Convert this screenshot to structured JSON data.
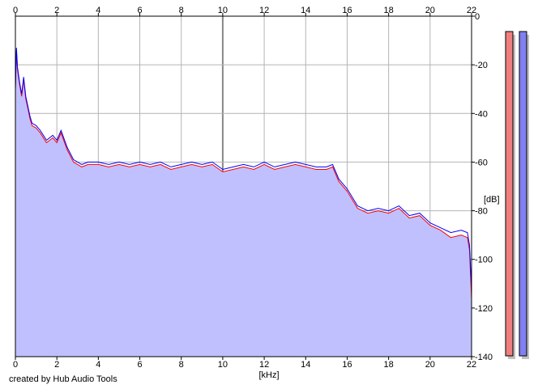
{
  "app": {
    "credit": "created by Hub Audio Tools"
  },
  "colors": {
    "plot_bg": "#ffffff",
    "fill": "#c0c0ff",
    "grid": "#b4b4b4",
    "grid_major": "#888888",
    "axis": "#000000",
    "left_channel": "#ff0000",
    "right_channel": "#0000ff",
    "meter_left": "#f08080",
    "meter_right": "#8080f0",
    "meter_shadow": "#c0c0c0"
  },
  "chart_data": {
    "type": "area",
    "xlabel": "[kHz]",
    "ylabel": "[dB]",
    "xlim": [
      0,
      22
    ],
    "ylim": [
      -140,
      0
    ],
    "x_ticks": [
      "0",
      "2",
      "4",
      "6",
      "8",
      "10",
      "12",
      "14",
      "16",
      "18",
      "20",
      "22"
    ],
    "y_ticks": [
      "0",
      "-20",
      "-40",
      "-60",
      "-80",
      "-100",
      "-120",
      "-140"
    ],
    "grid": true,
    "series": [
      {
        "channel": "left",
        "color": "#ff0000",
        "x": [
          0,
          0.05,
          0.1,
          0.2,
          0.3,
          0.4,
          0.5,
          0.6,
          0.7,
          0.8,
          1.0,
          1.2,
          1.5,
          1.8,
          2.0,
          2.2,
          2.5,
          2.8,
          3.0,
          3.2,
          3.5,
          4.0,
          4.5,
          5.0,
          5.5,
          6.0,
          6.5,
          7.0,
          7.5,
          8.0,
          8.5,
          9.0,
          9.5,
          10.0,
          10.5,
          11.0,
          11.5,
          12.0,
          12.5,
          13.0,
          13.5,
          14.0,
          14.5,
          15.0,
          15.3,
          15.6,
          16.0,
          16.5,
          17.0,
          17.5,
          18.0,
          18.5,
          19.0,
          19.5,
          20.0,
          20.5,
          21.0,
          21.5,
          21.8,
          21.9,
          22.0
        ],
        "y": [
          -30,
          -14,
          -22,
          -28,
          -33,
          -26,
          -34,
          -38,
          -42,
          -45,
          -46,
          -48,
          -52,
          -50,
          -52,
          -48,
          -55,
          -60,
          -61,
          -62,
          -61,
          -61,
          -62,
          -61,
          -62,
          -61,
          -62,
          -61,
          -63,
          -62,
          -61,
          -62,
          -61,
          -64,
          -63,
          -62,
          -63,
          -61,
          -63,
          -62,
          -61,
          -62,
          -63,
          -63,
          -62,
          -68,
          -72,
          -79,
          -81,
          -80,
          -81,
          -79,
          -83,
          -82,
          -86,
          -88,
          -91,
          -90,
          -91,
          -96,
          -116
        ]
      },
      {
        "channel": "right",
        "color": "#0000ff",
        "x": [
          0,
          0.05,
          0.1,
          0.2,
          0.3,
          0.4,
          0.5,
          0.6,
          0.7,
          0.8,
          1.0,
          1.2,
          1.5,
          1.8,
          2.0,
          2.2,
          2.5,
          2.8,
          3.0,
          3.2,
          3.5,
          4.0,
          4.5,
          5.0,
          5.5,
          6.0,
          6.5,
          7.0,
          7.5,
          8.0,
          8.5,
          9.0,
          9.5,
          10.0,
          10.5,
          11.0,
          11.5,
          12.0,
          12.5,
          13.0,
          13.5,
          14.0,
          14.5,
          15.0,
          15.3,
          15.6,
          16.0,
          16.5,
          17.0,
          17.5,
          18.0,
          18.5,
          19.0,
          19.5,
          20.0,
          20.5,
          21.0,
          21.5,
          21.8,
          21.9,
          22.0
        ],
        "y": [
          -30,
          -13,
          -21,
          -27,
          -32,
          -25,
          -33,
          -37,
          -41,
          -44,
          -45,
          -47,
          -51,
          -49,
          -51,
          -47,
          -54,
          -59,
          -60,
          -61,
          -60,
          -60,
          -61,
          -60,
          -61,
          -60,
          -61,
          -60,
          -62,
          -61,
          -60,
          -61,
          -60,
          -63,
          -62,
          -61,
          -62,
          -60,
          -62,
          -61,
          -60,
          -61,
          -62,
          -62,
          -61,
          -67,
          -71,
          -78,
          -80,
          -79,
          -80,
          -78,
          -82,
          -81,
          -85,
          -87,
          -89,
          -88,
          -89,
          -94,
          -112
        ]
      }
    ],
    "meters": [
      {
        "channel": "left",
        "level_db": 0
      },
      {
        "channel": "right",
        "level_db": 0
      }
    ]
  }
}
